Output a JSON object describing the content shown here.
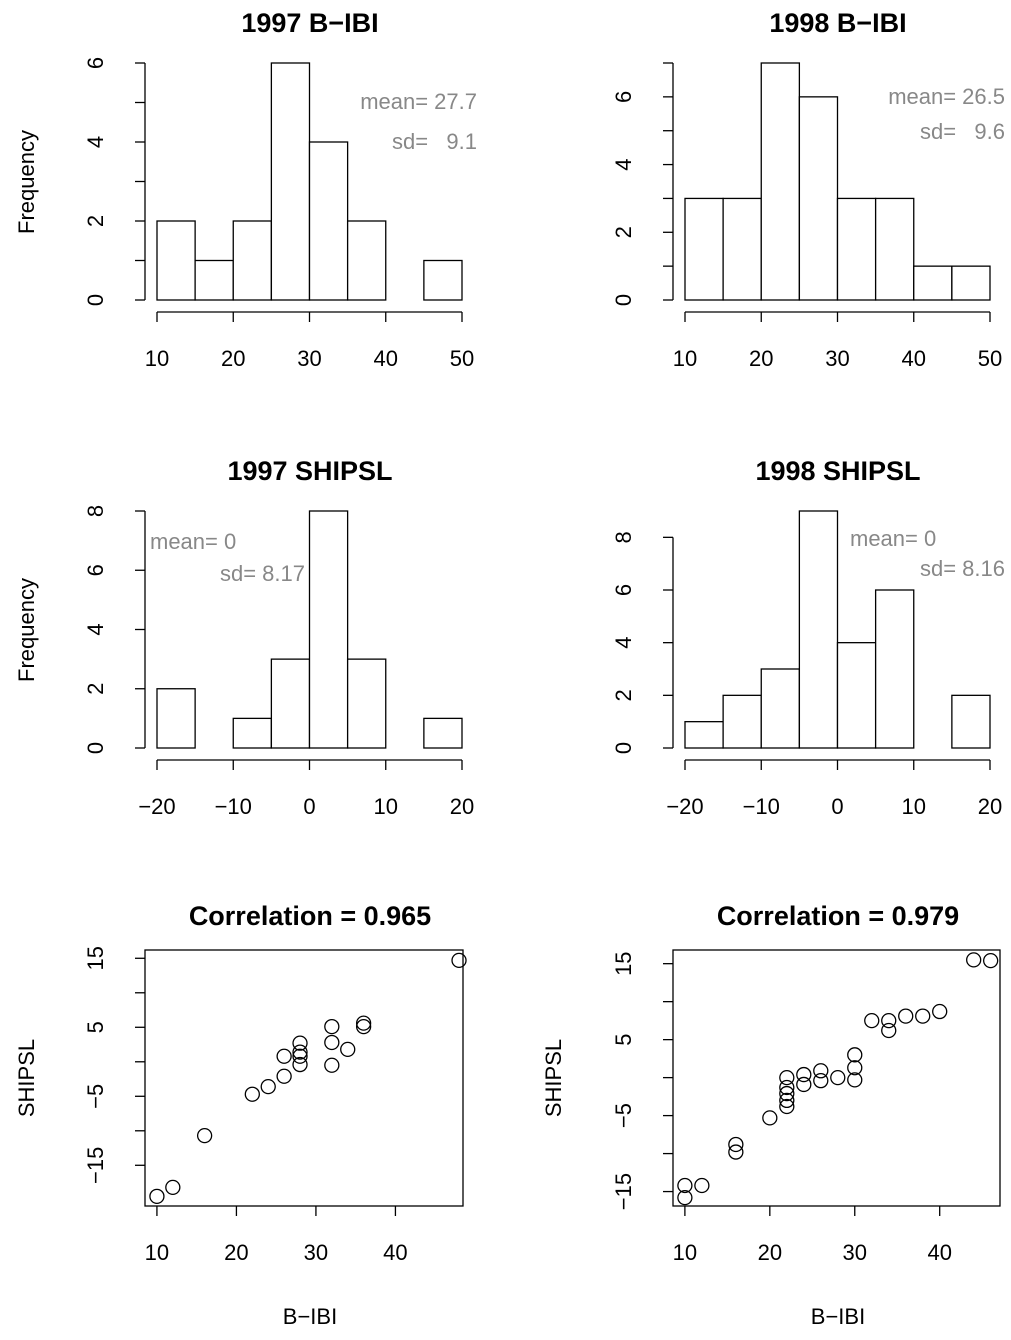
{
  "chart_data": [
    {
      "type": "histogram",
      "title": "1997 B−IBI",
      "ylabel": "Frequency",
      "bins": [
        10,
        15,
        20,
        25,
        30,
        35,
        40,
        45,
        50
      ],
      "values": [
        2,
        1,
        2,
        6,
        4,
        2,
        0,
        1
      ],
      "xlim": [
        10,
        50
      ],
      "ylim": [
        0,
        6
      ],
      "xticks": [
        10,
        20,
        30,
        40,
        50
      ],
      "yticks": [
        0,
        2,
        4,
        6
      ],
      "yticks_minor": [
        1,
        3,
        5
      ],
      "annotations": [
        "mean= 27.7",
        "sd=   9.1"
      ],
      "color": "#ffffff"
    },
    {
      "type": "histogram",
      "title": "1998 B−IBI",
      "bins": [
        10,
        15,
        20,
        25,
        30,
        35,
        40,
        45,
        50
      ],
      "values": [
        3,
        3,
        7,
        6,
        3,
        3,
        1,
        1
      ],
      "xlim": [
        10,
        50
      ],
      "ylim": [
        0,
        7
      ],
      "xticks": [
        10,
        20,
        30,
        40,
        50
      ],
      "yticks": [
        0,
        2,
        4,
        6
      ],
      "yticks_minor": [
        1,
        3,
        5,
        7
      ],
      "annotations": [
        "mean= 26.5",
        "sd=   9.6"
      ],
      "color": "#ffffff"
    },
    {
      "type": "histogram",
      "title": "1997 SHIPSL",
      "ylabel": "Frequency",
      "bins": [
        -20,
        -15,
        -10,
        -5,
        0,
        5,
        10,
        15,
        20
      ],
      "values": [
        2,
        0,
        1,
        3,
        8,
        3,
        0,
        1
      ],
      "xlim": [
        -20,
        20
      ],
      "ylim": [
        0,
        8
      ],
      "xticks": [
        {
          "value": -20,
          "label": "−20"
        },
        {
          "value": -10,
          "label": "−10"
        },
        0,
        10,
        20
      ],
      "yticks": [
        0,
        2,
        4,
        6,
        8
      ],
      "annotations": [
        "mean= 0",
        "sd= 8.17"
      ],
      "color": "#ffffff"
    },
    {
      "type": "histogram",
      "title": "1998 SHIPSL",
      "bins": [
        -20,
        -15,
        -10,
        -5,
        0,
        5,
        10,
        15,
        20
      ],
      "values": [
        1,
        2,
        3,
        9,
        4,
        6,
        0,
        2
      ],
      "xlim": [
        -20,
        20
      ],
      "ylim": [
        0,
        9
      ],
      "xticks": [
        {
          "value": -20,
          "label": "−20"
        },
        {
          "value": -10,
          "label": "−10"
        },
        0,
        10,
        20
      ],
      "yticks": [
        0,
        2,
        4,
        6,
        8
      ],
      "annotations": [
        "mean= 0",
        "sd= 8.16"
      ],
      "color": "#ffffff"
    },
    {
      "type": "scatter",
      "title": "Correlation = 0.965",
      "xlabel": "B−IBI",
      "ylabel": "SHIPSL",
      "x": [
        10,
        12,
        16,
        22,
        24,
        26,
        26,
        28,
        28,
        28,
        28,
        32,
        32,
        32,
        34,
        36,
        36,
        48
      ],
      "values": [
        -19.5,
        -18.2,
        -10.7,
        -4.7,
        -3.6,
        -2.1,
        0.8,
        -0.4,
        0.8,
        1.4,
        2.7,
        -0.5,
        2.8,
        5.1,
        1.8,
        5.1,
        5.6,
        14.7
      ],
      "xlim": [
        8.5,
        48.5
      ],
      "ylim": [
        -20.9,
        16.2
      ],
      "xticks": [
        10,
        20,
        30,
        40
      ],
      "yticks": [
        {
          "value": -15,
          "label": "−15"
        },
        {
          "value": -5,
          "label": "−5"
        },
        5,
        15
      ],
      "yticks_minor": [
        -10,
        0,
        10
      ]
    },
    {
      "type": "scatter",
      "title": "Correlation = 0.979",
      "xlabel": "B−IBI",
      "ylabel": "SHIPSL",
      "x": [
        10,
        10,
        12,
        16,
        16,
        20,
        22,
        22,
        22,
        22,
        22,
        24,
        24,
        26,
        26,
        28,
        30,
        30,
        30,
        32,
        34,
        34,
        36,
        38,
        40,
        44,
        46
      ],
      "values": [
        -14.2,
        -15.8,
        -14.2,
        -8.8,
        -9.8,
        -5.3,
        0,
        -1.3,
        -2.1,
        -3,
        -3.8,
        0.4,
        -0.9,
        0.9,
        -0.4,
        0,
        3,
        1.3,
        -0.3,
        7.5,
        7.5,
        6.2,
        8.1,
        8.1,
        8.7,
        15.5,
        15.4
      ],
      "xlim": [
        8.6,
        47.1
      ],
      "ylim": [
        -16.9,
        16.8
      ],
      "xticks": [
        10,
        20,
        30,
        40
      ],
      "yticks": [
        {
          "value": -15,
          "label": "−15"
        },
        {
          "value": -5,
          "label": "−5"
        },
        5,
        15
      ],
      "yticks_minor": [
        -10,
        0,
        10
      ]
    }
  ]
}
